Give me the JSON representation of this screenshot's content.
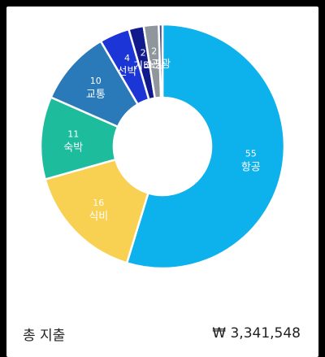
{
  "chart_data": {
    "type": "pie",
    "donut": true,
    "start_angle_deg": 0,
    "direction": "clockwise",
    "categories": [
      "항공",
      "식비",
      "숙박",
      "교통",
      "선박",
      "기타",
      "쇼핑",
      "관광"
    ],
    "values": [
      55,
      16,
      11,
      10,
      4,
      2,
      2,
      0.5
    ],
    "value_labels": [
      "55",
      "16",
      "11",
      "10",
      "4",
      "2",
      "2",
      ""
    ],
    "colors": [
      "#0DB1EC",
      "#F8D052",
      "#1DBC9C",
      "#2A7AB9",
      "#1B35D6",
      "#101A8C",
      "#8F969C",
      "#4A4A8A"
    ]
  },
  "footer": {
    "total_label": "총 지출",
    "total_value": "₩ 3,341,548"
  }
}
